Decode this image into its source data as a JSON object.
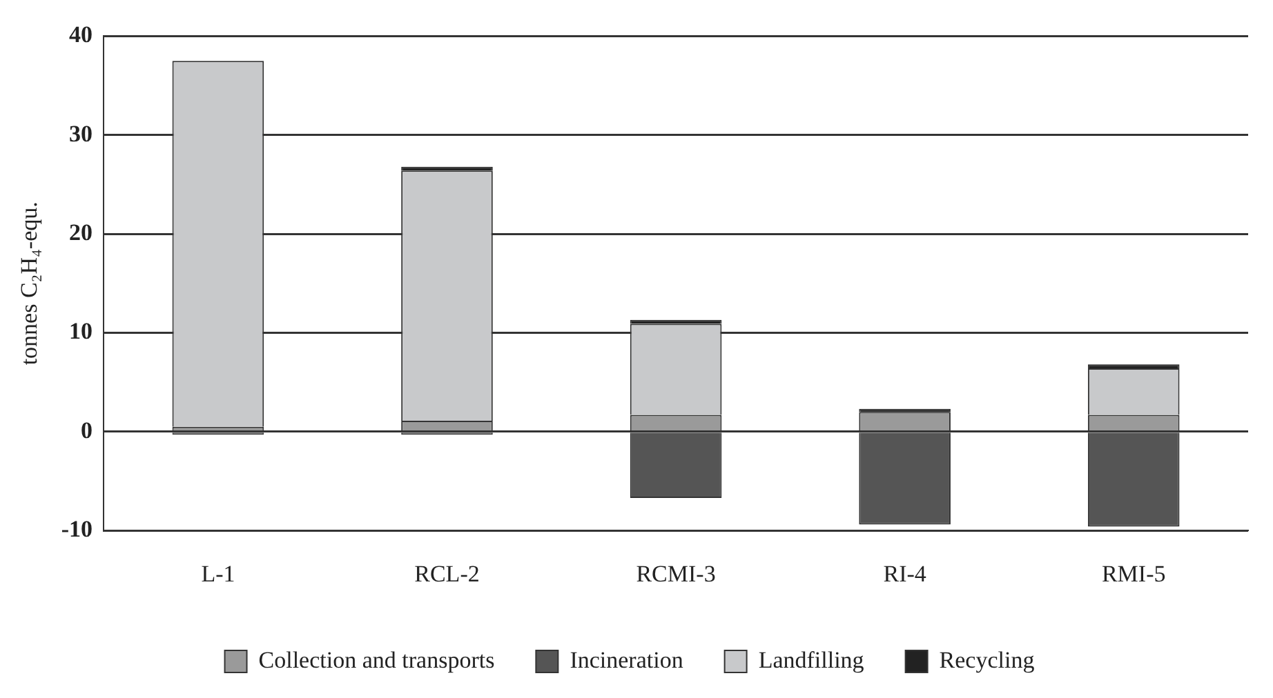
{
  "chart_data": {
    "type": "bar",
    "stacked": true,
    "ylabel": "tonnes C₂H₄-equ.",
    "categories": [
      "L-1",
      "RCL-2",
      "RCMI-3",
      "RI-4",
      "RMI-5"
    ],
    "series": [
      {
        "name": "Collection and transports",
        "color": "#9a9a9a",
        "values": [
          0.5,
          1.1,
          1.7,
          2.0,
          1.7
        ]
      },
      {
        "name": "Incineration",
        "color": "#555555",
        "values": [
          -0.3,
          -0.3,
          -6.7,
          -9.4,
          -9.6
        ]
      },
      {
        "name": "Landfilling",
        "color": "#c8c9cb",
        "values": [
          37.0,
          25.3,
          9.2,
          0,
          4.7
        ]
      },
      {
        "name": "Recycling",
        "color": "#222222",
        "values": [
          0,
          0.4,
          0.4,
          0.3,
          0.4
        ]
      }
    ],
    "ylim": [
      -10,
      40
    ],
    "yticks": [
      -10,
      0,
      10,
      20,
      30,
      40
    ],
    "grid": "y",
    "legend": "bottom"
  }
}
